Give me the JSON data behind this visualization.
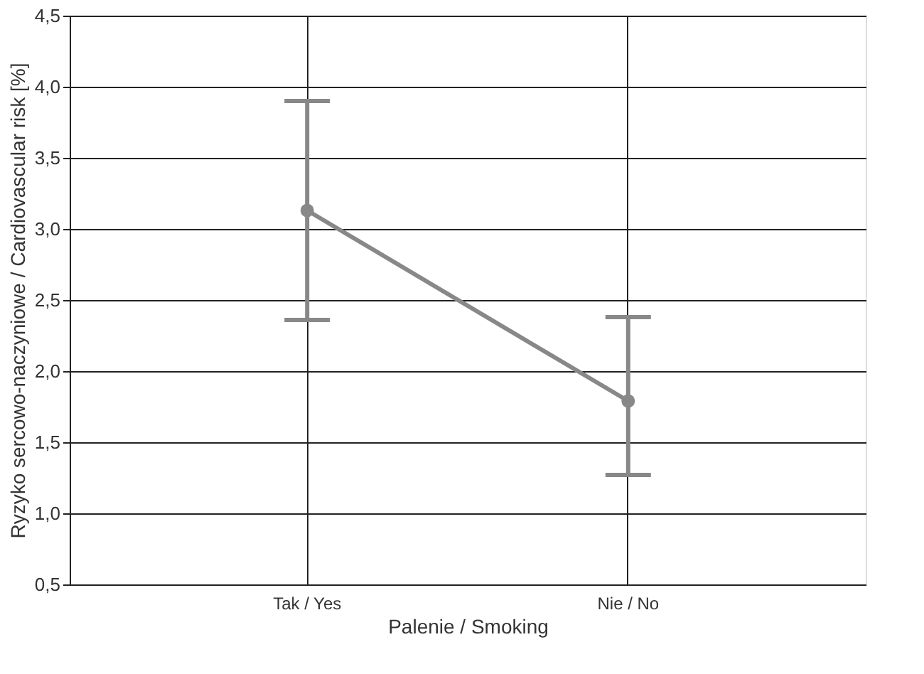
{
  "chart_data": {
    "type": "line",
    "xlabel": "Palenie / Smoking",
    "ylabel": "Ryzyko sercowo-naczyniowe / Cardiovascular risk [%]",
    "categories": [
      "Tak / Yes",
      "Nie / No"
    ],
    "series": [
      {
        "color": "#888888",
        "values": [
          3.13,
          1.79
        ],
        "errors": [
          [
            2.36,
            3.9
          ],
          [
            1.27,
            2.38
          ]
        ]
      }
    ],
    "ylim": [
      0.5,
      4.5
    ],
    "yticks": [
      {
        "value": 0.5,
        "label": "0,5"
      },
      {
        "value": 1.0,
        "label": "1,0"
      },
      {
        "value": 1.5,
        "label": "1,5"
      },
      {
        "value": 2.0,
        "label": "2,0"
      },
      {
        "value": 2.5,
        "label": "2,5"
      },
      {
        "value": 3.0,
        "label": "3,0"
      },
      {
        "value": 3.5,
        "label": "3,5"
      },
      {
        "value": 4.0,
        "label": "4,0"
      },
      {
        "value": 4.5,
        "label": "4,5"
      }
    ],
    "grid": true,
    "marker": "circle",
    "line_style": "solid"
  }
}
